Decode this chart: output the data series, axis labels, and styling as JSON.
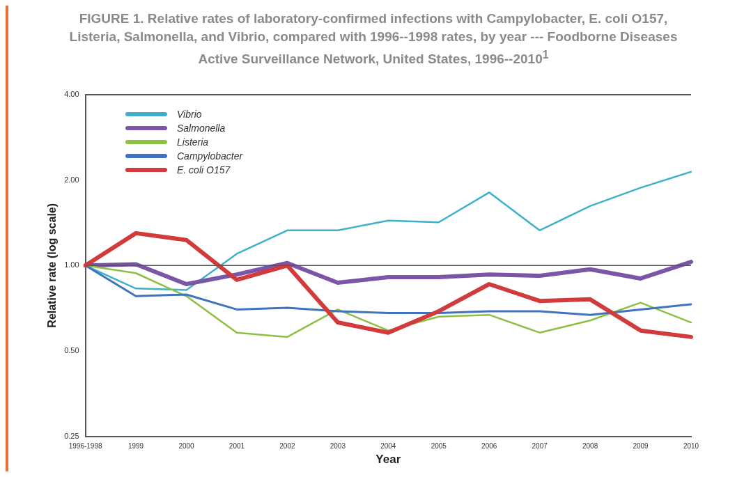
{
  "chart_data": {
    "type": "line",
    "title": "FIGURE 1. Relative rates of laboratory-confirmed infections with Campylobacter, E. coli O157, Listeria, Salmonella, and Vibrio, compared with 1996--1998 rates, by year --- Foodborne Diseases Active Surveillance Network, United States, 1996--2010$^{1}$",
    "xlabel": "Year",
    "ylabel": "Relative rate (log scale)",
    "categories": [
      "1996-1998",
      "1999",
      "2000",
      "2001",
      "2002",
      "2003",
      "2004",
      "2005",
      "2006",
      "2007",
      "2008",
      "2009",
      "2010"
    ],
    "series": [
      {
        "name": "Vibrio",
        "color": "#3fb0c9",
        "values": [
          1.0,
          0.83,
          0.82,
          1.1,
          1.33,
          1.33,
          1.44,
          1.42,
          1.81,
          1.33,
          1.62,
          1.88,
          2.14
        ]
      },
      {
        "name": "Salmonella",
        "color": "#7b55a8",
        "values": [
          1.0,
          1.01,
          0.86,
          0.93,
          1.02,
          0.87,
          0.91,
          0.91,
          0.93,
          0.92,
          0.97,
          0.9,
          1.03
        ]
      },
      {
        "name": "Listeria",
        "color": "#8dbf45",
        "values": [
          1.0,
          0.94,
          0.78,
          0.58,
          0.56,
          0.7,
          0.59,
          0.66,
          0.67,
          0.58,
          0.64,
          0.74,
          0.63
        ]
      },
      {
        "name": "Campylobacter",
        "color": "#3f73c0",
        "values": [
          1.0,
          0.78,
          0.79,
          0.7,
          0.71,
          0.69,
          0.68,
          0.68,
          0.69,
          0.69,
          0.67,
          0.7,
          0.73
        ]
      },
      {
        "name": "E. coli O157",
        "color": "#d23b3b",
        "values": [
          1.0,
          1.3,
          1.23,
          0.89,
          1.0,
          0.63,
          0.58,
          0.69,
          0.86,
          0.75,
          0.76,
          0.59,
          0.56
        ]
      }
    ],
    "log": "y",
    "ylim": [
      0.25,
      4
    ],
    "yticks": [
      {
        "value": 0.25,
        "label": "0.25"
      },
      {
        "value": 0.5,
        "label": "0.50"
      },
      {
        "value": 1,
        "label": "1.00"
      },
      {
        "value": 2,
        "label": "2.00"
      },
      {
        "value": 4,
        "label": "4.00"
      }
    ],
    "ref_lines": [
      {
        "axis": "y",
        "value": 1,
        "color": "#555555"
      }
    ],
    "grid": false,
    "legend": "top left",
    "marker": "none",
    "line_style": "solid"
  }
}
